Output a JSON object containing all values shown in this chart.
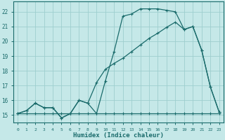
{
  "xlabel": "Humidex (Indice chaleur)",
  "xlim": [
    -0.5,
    23.5
  ],
  "ylim": [
    14.5,
    22.7
  ],
  "xticks": [
    0,
    1,
    2,
    3,
    4,
    5,
    6,
    7,
    8,
    9,
    10,
    11,
    12,
    13,
    14,
    15,
    16,
    17,
    18,
    19,
    20,
    21,
    22,
    23
  ],
  "yticks": [
    15,
    16,
    17,
    18,
    19,
    20,
    21,
    22
  ],
  "bg_color": "#c5e8e8",
  "line_color": "#1a6b6b",
  "grid_color": "#9ecece",
  "line1_x": [
    0,
    1,
    2,
    3,
    4,
    5,
    6,
    7,
    8,
    9,
    10,
    11,
    12,
    13,
    14,
    15,
    16,
    17,
    18,
    19,
    20,
    21,
    22,
    23
  ],
  "line1_y": [
    15.1,
    15.1,
    15.1,
    15.1,
    15.1,
    15.1,
    15.1,
    15.1,
    15.1,
    15.1,
    15.1,
    15.1,
    15.1,
    15.1,
    15.1,
    15.1,
    15.1,
    15.1,
    15.1,
    15.1,
    15.1,
    15.1,
    15.1,
    15.1
  ],
  "line2_x": [
    0,
    1,
    2,
    3,
    4,
    5,
    6,
    7,
    8,
    9,
    10,
    11,
    12,
    13,
    14,
    15,
    16,
    17,
    18,
    19,
    20,
    21,
    22,
    23
  ],
  "line2_y": [
    15.1,
    15.3,
    15.8,
    15.5,
    15.5,
    14.8,
    15.1,
    16.0,
    15.8,
    15.1,
    17.3,
    19.3,
    21.7,
    21.85,
    22.2,
    22.2,
    22.2,
    22.1,
    22.0,
    20.8,
    21.0,
    19.4,
    16.9,
    15.2
  ],
  "line3_x": [
    0,
    1,
    2,
    3,
    4,
    5,
    6,
    7,
    8,
    9,
    10,
    11,
    12,
    13,
    14,
    15,
    16,
    17,
    18,
    19,
    20,
    21,
    22,
    23
  ],
  "line3_y": [
    15.1,
    15.3,
    15.8,
    15.5,
    15.5,
    14.8,
    15.1,
    16.0,
    15.8,
    17.2,
    18.1,
    18.5,
    18.85,
    19.3,
    19.75,
    20.2,
    20.55,
    20.95,
    21.3,
    20.8,
    21.0,
    19.4,
    16.9,
    15.2
  ]
}
